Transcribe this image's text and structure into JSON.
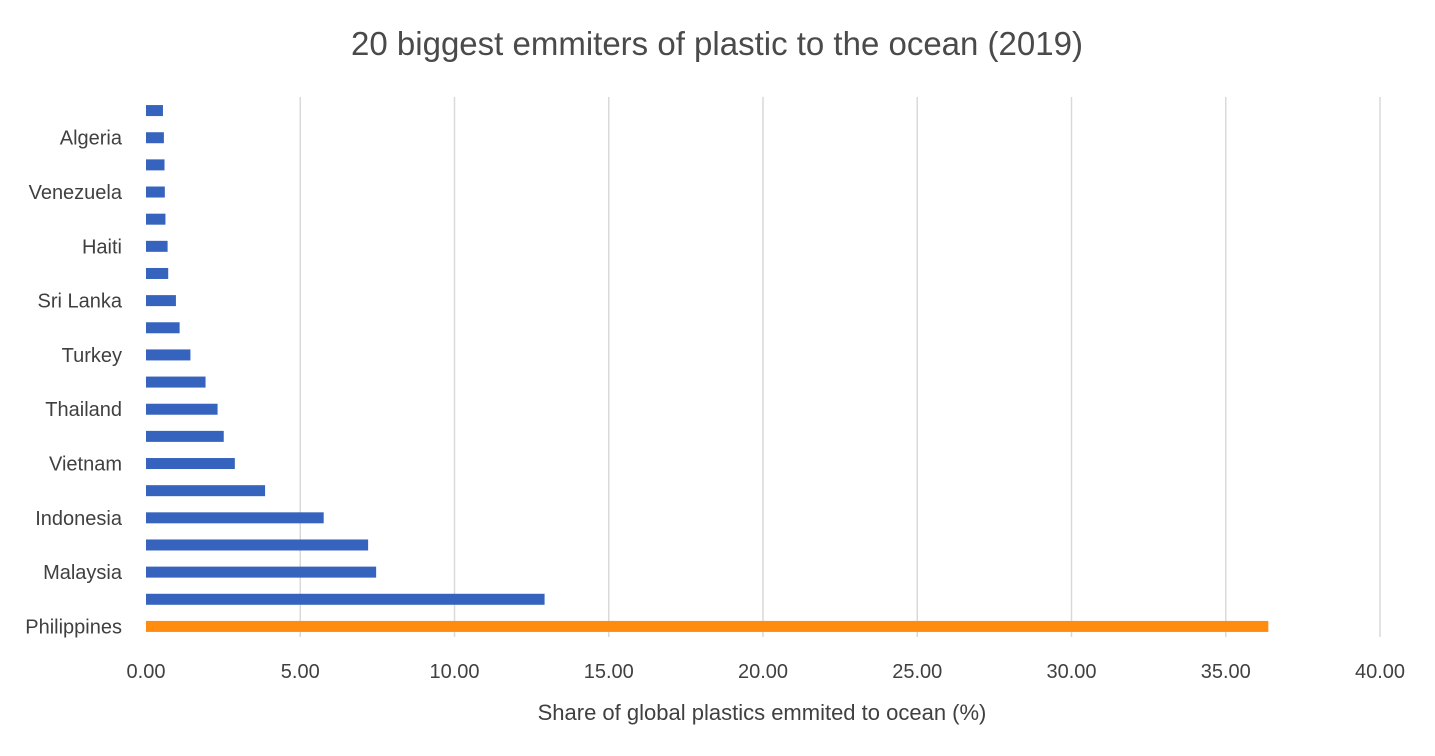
{
  "chart_data": {
    "type": "bar",
    "orientation": "horizontal",
    "title": "20 biggest emmiters of plastic to the ocean (2019)",
    "xlabel": "Share of global plastics emmited to ocean (%)",
    "ylabel": "",
    "xlim": [
      0,
      40
    ],
    "x_ticks": [
      "0.00",
      "5.00",
      "10.00",
      "15.00",
      "20.00",
      "25.00",
      "30.00",
      "35.00",
      "40.00"
    ],
    "grid": "vertical",
    "legend": "none",
    "categories": [
      "Philippines",
      "",
      "Malaysia",
      "",
      "Indonesia",
      "",
      "Vietnam",
      "",
      "Thailand",
      "",
      "Turkey",
      "",
      "Sri Lanka",
      "",
      "Haiti",
      "",
      "Venezuela",
      "",
      "Algeria",
      ""
    ],
    "values": [
      36.38,
      12.92,
      7.46,
      7.2,
      5.76,
      3.86,
      2.88,
      2.52,
      2.32,
      1.93,
      1.44,
      1.09,
      0.97,
      0.72,
      0.7,
      0.63,
      0.61,
      0.6,
      0.58,
      0.55
    ],
    "bar_color": "#3563be",
    "highlight_color": "#ff8c0f",
    "highlight_index": 0,
    "gridline_color": "#d9d9d9"
  }
}
